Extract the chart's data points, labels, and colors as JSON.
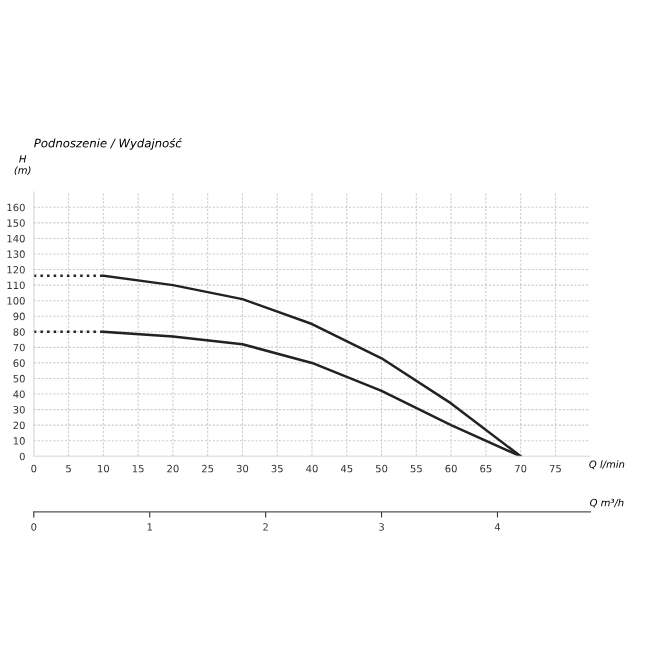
{
  "chart_data": {
    "type": "line",
    "title": "Podnoszenie / Wydajność",
    "ylabel": "H\n(m)",
    "xlabel": "Q l/min",
    "x2label": "Q m³/h",
    "series": [
      {
        "color": "#222222",
        "x": [
          10,
          20,
          30,
          40,
          50,
          60,
          70
        ],
        "values": [
          116,
          110,
          101,
          85,
          63,
          34,
          0
        ]
      },
      {
        "color": "#222222",
        "x": [
          10,
          20,
          30,
          40,
          50,
          60,
          70
        ],
        "values": [
          80,
          77,
          72,
          60,
          42,
          20,
          0
        ]
      },
      {
        "color": "#222222",
        "x": [
          0,
          10
        ],
        "values": [
          116,
          116
        ],
        "line_style": "dotted"
      },
      {
        "color": "#222222",
        "x": [
          0,
          10
        ],
        "values": [
          80,
          80
        ],
        "line_style": "dotted"
      }
    ],
    "xlim": [
      0,
      80
    ],
    "ylim": [
      0,
      170
    ],
    "xticks": [
      0,
      5,
      10,
      15,
      20,
      25,
      30,
      35,
      40,
      45,
      50,
      55,
      60,
      65,
      70,
      75
    ],
    "yticks": [
      0,
      10,
      20,
      30,
      40,
      50,
      60,
      70,
      80,
      90,
      100,
      110,
      120,
      130,
      140,
      150,
      160
    ],
    "x2lim": [
      0,
      4.8
    ],
    "x2ticks": [
      0,
      1,
      2,
      3,
      4
    ],
    "grid": true,
    "legend": false,
    "marker": "none",
    "line_style": "solid"
  }
}
